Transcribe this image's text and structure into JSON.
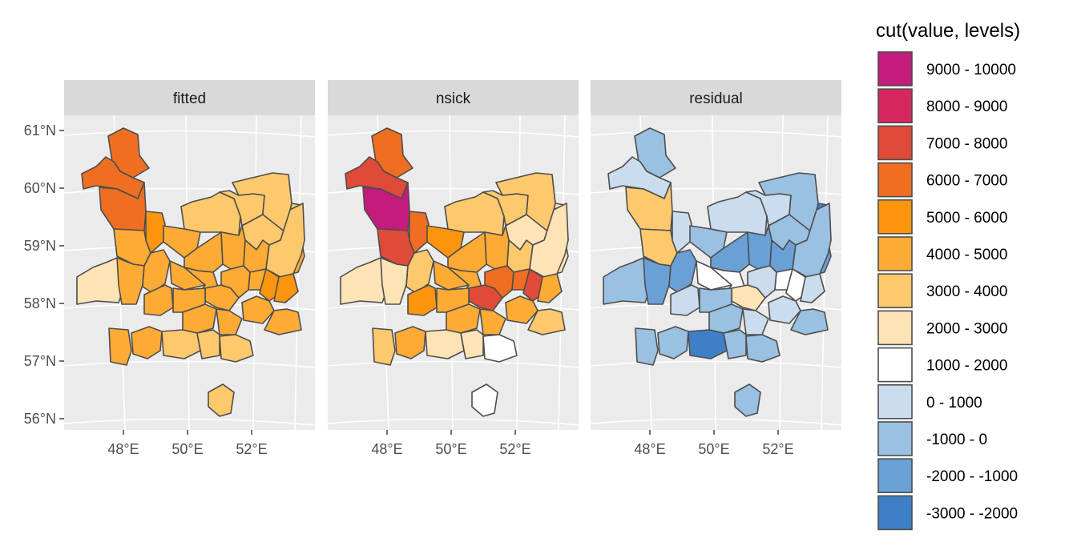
{
  "chart_data": {
    "type": "choropleth-map",
    "facets": [
      "fitted",
      "nsick",
      "residual"
    ],
    "x_ticks": [
      "48°E",
      "50°E",
      "52°E"
    ],
    "y_ticks": [
      "61°N",
      "60°N",
      "59°N",
      "58°N",
      "57°N",
      "56°N"
    ],
    "legend": {
      "title": "cut(value, levels)",
      "placement": "right",
      "levels": [
        {
          "label": "9000 - 10000",
          "color": "#c51b7d"
        },
        {
          "label": "8000 - 9000",
          "color": "#d6275e"
        },
        {
          "label": "7000 - 8000",
          "color": "#e04a38"
        },
        {
          "label": "6000 - 7000",
          "color": "#ef6e21"
        },
        {
          "label": "5000 - 6000",
          "color": "#fd950c"
        },
        {
          "label": "4000 - 5000",
          "color": "#feab35"
        },
        {
          "label": "3000 - 4000",
          "color": "#fec96d"
        },
        {
          "label": "2000 - 3000",
          "color": "#fee3b5"
        },
        {
          "label": "1000 - 2000",
          "color": "#ffffff"
        },
        {
          "label": "0 - 1000",
          "color": "#cadcee"
        },
        {
          "label": "-1000 - 0",
          "color": "#9ac0e2"
        },
        {
          "label": "-2000 - -1000",
          "color": "#6aa0d6"
        },
        {
          "label": "-3000 - -2000",
          "color": "#3e80c8"
        }
      ]
    },
    "region_classes": {
      "fitted": [
        "6000 - 7000",
        "6000 - 7000",
        "6000 - 7000",
        "4000 - 5000",
        "5000 - 6000",
        "3000 - 4000",
        "3000 - 4000",
        "3000 - 4000",
        "3000 - 4000",
        "4000 - 5000",
        "4000 - 5000",
        "4000 - 5000",
        "4000 - 5000",
        "4000 - 5000",
        "3000 - 4000",
        "3000 - 4000",
        "2000 - 3000",
        "4000 - 5000",
        "4000 - 5000",
        "4000 - 5000",
        "4000 - 5000",
        "4000 - 5000",
        "4000 - 5000",
        "4000 - 5000",
        "5000 - 6000",
        "5000 - 6000",
        "4000 - 5000",
        "4000 - 5000",
        "4000 - 5000",
        "4000 - 5000",
        "4000 - 5000",
        "4000 - 5000",
        "4000 - 5000",
        "4000 - 5000",
        "3000 - 4000",
        "3000 - 4000",
        "3000 - 4000"
      ],
      "nsick": [
        "6000 - 7000",
        "7000 - 8000",
        "9000 - 10000",
        "7000 - 8000",
        "6000 - 7000",
        "3000 - 4000",
        "3000 - 4000",
        "3000 - 4000",
        "2000 - 3000",
        "5000 - 6000",
        "4000 - 5000",
        "4000 - 5000",
        "3000 - 4000",
        "2000 - 3000",
        "2000 - 3000",
        "2000 - 3000",
        "2000 - 3000",
        "2000 - 3000",
        "3000 - 4000",
        "4000 - 5000",
        "4000 - 5000",
        "7000 - 8000",
        "6000 - 7000",
        "6000 - 7000",
        "7000 - 8000",
        "4000 - 5000",
        "5000 - 6000",
        "4000 - 5000",
        "4000 - 5000",
        "4000 - 5000",
        "4000 - 5000",
        "3000 - 4000",
        "3000 - 4000",
        "4000 - 5000",
        "2000 - 3000",
        "2000 - 3000",
        "1000 - 2000"
      ],
      "residual": [
        "-1000 - 0",
        "0 - 1000",
        "3000 - 4000",
        "3000 - 4000",
        "0 - 1000",
        "0 - 1000",
        "0 - 1000",
        "-1000 - 0",
        "-1000 - 0",
        "-1000 - 0",
        "-2000 - -1000",
        "-2000 - -1000",
        "-2000 - -1000",
        "-2000 - -1000",
        "-3000 - -2000",
        "-1000 - 0",
        "-1000 - 0",
        "-2000 - -1000",
        "-2000 - -1000",
        "1000 - 2000",
        "1000 - 2000",
        "2000 - 3000",
        "0 - 1000",
        "1000 - 2000",
        "1000 - 2000",
        "0 - 1000",
        "0 - 1000",
        "-1000 - 0",
        "-1000 - 0",
        "0 - 1000",
        "0 - 1000",
        "-1000 - 0",
        "-1000 - 0",
        "-1000 - 0",
        "-3000 - -2000",
        "-1000 - 0",
        "-1000 - 0"
      ]
    }
  }
}
